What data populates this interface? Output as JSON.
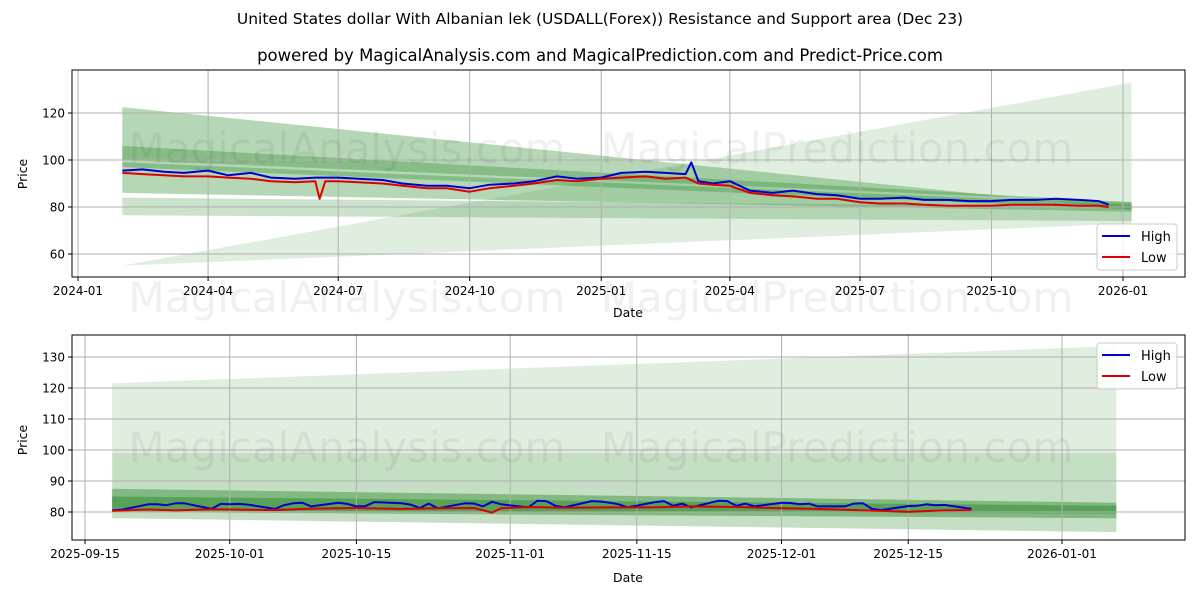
{
  "header": {
    "title": "United States dollar With Albanian lek (USDALL(Forex)) Resistance and Support area (Dec 23)",
    "subtitle": "powered by MagicalAnalysis.com and MagicalPrediction.com and Predict-Price.com"
  },
  "watermarks": [
    "MagicalAnalysis.com",
    "MagicalPrediction.com"
  ],
  "colors": {
    "high": "#0000cc",
    "low": "#dd0000",
    "band_dark": "#2e8b2e",
    "band_mid": "#4caf50",
    "band_light": "#a5d6a7",
    "grid": "#b0b0b0"
  },
  "chart_data": [
    {
      "type": "line",
      "title": "",
      "xlabel": "Date",
      "ylabel": "Price",
      "ylim": [
        50,
        138
      ],
      "grid": true,
      "legend_position": "lower right",
      "legend": [
        "High",
        "Low"
      ],
      "x_ticks": [
        "2024-01",
        "2024-04",
        "2024-07",
        "2024-10",
        "2025-01",
        "2025-04",
        "2025-07",
        "2025-10",
        "2026-01"
      ],
      "y_ticks": [
        60,
        80,
        100,
        120
      ],
      "series": [
        {
          "name": "High",
          "x": [
            "2024-02-01",
            "2024-02-15",
            "2024-03-01",
            "2024-03-15",
            "2024-04-01",
            "2024-04-15",
            "2024-05-01",
            "2024-05-15",
            "2024-06-01",
            "2024-06-15",
            "2024-07-01",
            "2024-07-15",
            "2024-08-01",
            "2024-08-15",
            "2024-09-01",
            "2024-09-15",
            "2024-10-01",
            "2024-10-15",
            "2024-11-01",
            "2024-11-15",
            "2024-12-01",
            "2024-12-15",
            "2025-01-01",
            "2025-01-15",
            "2025-02-01",
            "2025-02-15",
            "2025-03-01",
            "2025-03-05",
            "2025-03-10",
            "2025-03-20",
            "2025-04-01",
            "2025-04-15",
            "2025-05-01",
            "2025-05-15",
            "2025-06-01",
            "2025-06-15",
            "2025-07-01",
            "2025-07-15",
            "2025-08-01",
            "2025-08-15",
            "2025-09-01",
            "2025-09-15",
            "2025-10-01",
            "2025-10-15",
            "2025-11-01",
            "2025-11-15",
            "2025-12-01",
            "2025-12-15",
            "2025-12-22"
          ],
          "values": [
            95.5,
            96,
            95,
            94.5,
            95.5,
            93.5,
            94.5,
            92.5,
            92,
            92.5,
            92.5,
            92,
            91.5,
            90,
            89,
            89,
            88,
            89.5,
            90,
            91,
            93,
            92,
            92.5,
            94.5,
            95,
            94.5,
            94,
            99,
            91,
            90,
            91,
            87,
            86,
            87,
            85.5,
            85,
            83.5,
            83.5,
            84,
            83,
            83,
            82.5,
            82.5,
            83,
            83,
            83.5,
            83,
            82.5,
            81
          ]
        },
        {
          "name": "Low",
          "x": [
            "2024-02-01",
            "2024-02-15",
            "2024-03-01",
            "2024-03-15",
            "2024-04-01",
            "2024-04-15",
            "2024-05-01",
            "2024-05-15",
            "2024-06-01",
            "2024-06-15",
            "2024-06-18",
            "2024-06-22",
            "2024-07-01",
            "2024-07-15",
            "2024-08-01",
            "2024-08-15",
            "2024-09-01",
            "2024-09-15",
            "2024-10-01",
            "2024-10-15",
            "2024-11-01",
            "2024-11-15",
            "2024-12-01",
            "2024-12-15",
            "2025-01-01",
            "2025-01-15",
            "2025-02-01",
            "2025-02-15",
            "2025-03-01",
            "2025-03-10",
            "2025-03-20",
            "2025-04-01",
            "2025-04-15",
            "2025-05-01",
            "2025-05-15",
            "2025-06-01",
            "2025-06-15",
            "2025-07-01",
            "2025-07-15",
            "2025-08-01",
            "2025-08-15",
            "2025-09-01",
            "2025-09-15",
            "2025-10-01",
            "2025-10-15",
            "2025-11-01",
            "2025-11-15",
            "2025-12-01",
            "2025-12-15",
            "2025-12-22"
          ],
          "values": [
            94.5,
            94,
            93.5,
            93,
            93,
            92.5,
            92,
            91,
            90.5,
            91,
            83.5,
            91,
            91,
            90.5,
            90,
            89,
            88,
            88,
            86.5,
            88,
            89,
            90,
            91.5,
            91,
            92,
            92.5,
            93,
            92,
            92.5,
            90,
            89.5,
            89,
            86,
            85,
            84.5,
            83.5,
            83.5,
            82,
            81.5,
            81.5,
            81,
            80.5,
            80.5,
            80.5,
            81,
            81,
            81,
            80.5,
            80.5,
            80
          ]
        }
      ],
      "bands": [
        {
          "name": "outer-wide",
          "opacity": 0.15,
          "x0": "2024-02-01",
          "x1": "2026-01-07",
          "upper": [
            55,
            133
          ],
          "lower": [
            55,
            73
          ],
          "note": "light triangle from low-left"
        },
        {
          "name": "upper-resistance",
          "opacity": 0.35,
          "x0": "2024-02-01",
          "x1": "2026-01-07",
          "upper": [
            122.5,
            79
          ],
          "lower": [
            100,
            82
          ]
        },
        {
          "name": "mid-resistance",
          "opacity": 0.35,
          "x0": "2024-02-01",
          "x1": "2026-01-07",
          "upper": [
            106,
            82
          ],
          "lower": [
            97,
            79
          ]
        },
        {
          "name": "core",
          "opacity": 0.35,
          "x0": "2024-02-01",
          "x1": "2026-01-07",
          "upper": [
            99,
            81
          ],
          "lower": [
            86,
            78
          ]
        },
        {
          "name": "support",
          "opacity": 0.25,
          "x0": "2024-02-01",
          "x1": "2026-01-07",
          "upper": [
            84,
            80
          ],
          "lower": [
            76.5,
            74
          ]
        }
      ]
    },
    {
      "type": "line",
      "title": "",
      "xlabel": "Date",
      "ylabel": "Price",
      "ylim": [
        71,
        137
      ],
      "grid": true,
      "legend_position": "upper right",
      "legend": [
        "High",
        "Low"
      ],
      "x_ticks": [
        "2025-09-15",
        "2025-10-01",
        "2025-10-15",
        "2025-11-01",
        "2025-11-15",
        "2025-12-01",
        "2025-12-15",
        "2026-01-01"
      ],
      "y_ticks": [
        80,
        90,
        100,
        110,
        120,
        130
      ],
      "series": [
        {
          "name": "High",
          "x": [
            "2025-09-18",
            "2025-09-19",
            "2025-09-22",
            "2025-09-23",
            "2025-09-24",
            "2025-09-25",
            "2025-09-26",
            "2025-09-29",
            "2025-09-30",
            "2025-10-01",
            "2025-10-02",
            "2025-10-03",
            "2025-10-06",
            "2025-10-07",
            "2025-10-08",
            "2025-10-09",
            "2025-10-10",
            "2025-10-13",
            "2025-10-14",
            "2025-10-15",
            "2025-10-16",
            "2025-10-17",
            "2025-10-20",
            "2025-10-21",
            "2025-10-22",
            "2025-10-23",
            "2025-10-24",
            "2025-10-27",
            "2025-10-28",
            "2025-10-29",
            "2025-10-30",
            "2025-10-31",
            "2025-11-03",
            "2025-11-04",
            "2025-11-05",
            "2025-11-06",
            "2025-11-07",
            "2025-11-10",
            "2025-11-11",
            "2025-11-12",
            "2025-11-13",
            "2025-11-14",
            "2025-11-17",
            "2025-11-18",
            "2025-11-19",
            "2025-11-20",
            "2025-11-21",
            "2025-11-24",
            "2025-11-25",
            "2025-11-26",
            "2025-11-27",
            "2025-11-28",
            "2025-12-01",
            "2025-12-02",
            "2025-12-03",
            "2025-12-04",
            "2025-12-05",
            "2025-12-08",
            "2025-12-09",
            "2025-12-10",
            "2025-12-11",
            "2025-12-12",
            "2025-12-15",
            "2025-12-16",
            "2025-12-17",
            "2025-12-18",
            "2025-12-19",
            "2025-12-22"
          ],
          "values": [
            80.5,
            80.7,
            82.5,
            82.5,
            82.2,
            82.8,
            82.8,
            81,
            82.6,
            82.5,
            82.6,
            82.4,
            81,
            82.2,
            82.8,
            83,
            81.8,
            83,
            82.6,
            81.8,
            81.9,
            83.2,
            82.8,
            82.4,
            81.3,
            82.7,
            81.2,
            82.8,
            82.7,
            81.8,
            83.3,
            82.5,
            81.5,
            83.6,
            83.5,
            82,
            81.5,
            83.5,
            83.4,
            83,
            82.5,
            81.5,
            83.2,
            83.5,
            82,
            82.7,
            81.5,
            83.6,
            83.5,
            82,
            82.7,
            81.8,
            83,
            82.9,
            82.5,
            82.7,
            81.8,
            81.8,
            82.7,
            82.8,
            81,
            80.6,
            81.9,
            82,
            82.5,
            82.2,
            82.3,
            81
          ]
        },
        {
          "name": "Low",
          "x": [
            "2025-09-18",
            "2025-09-22",
            "2025-09-25",
            "2025-09-29",
            "2025-10-01",
            "2025-10-06",
            "2025-10-10",
            "2025-10-15",
            "2025-10-20",
            "2025-10-24",
            "2025-10-28",
            "2025-10-30",
            "2025-10-31",
            "2025-11-03",
            "2025-11-07",
            "2025-11-12",
            "2025-11-17",
            "2025-11-21",
            "2025-11-26",
            "2025-12-01",
            "2025-12-05",
            "2025-12-10",
            "2025-12-15",
            "2025-12-19",
            "2025-12-22"
          ],
          "values": [
            80.4,
            80.8,
            80.5,
            80.9,
            80.8,
            80.6,
            81.1,
            81.3,
            81,
            81.2,
            81.3,
            79.8,
            81.2,
            81.6,
            81.4,
            81.5,
            81.5,
            81.8,
            81.6,
            81.2,
            81,
            80.5,
            80.1,
            80.5,
            80.6
          ]
        }
      ],
      "bands": [
        {
          "name": "outer-wide",
          "opacity": 0.15,
          "x0": "2025-09-18",
          "x1": "2026-01-07",
          "upper": [
            121.5,
            133.5
          ],
          "lower": [
            78,
            73.5
          ]
        },
        {
          "name": "mid",
          "opacity": 0.15,
          "x0": "2025-09-18",
          "x1": "2026-01-07",
          "upper": [
            99,
            99
          ],
          "lower": [
            78,
            73.5
          ]
        },
        {
          "name": "resistance",
          "opacity": 0.45,
          "x0": "2025-09-18",
          "x1": "2026-01-07",
          "upper": [
            87.5,
            83
          ],
          "lower": [
            80,
            78
          ]
        },
        {
          "name": "core",
          "opacity": 0.5,
          "x0": "2025-09-18",
          "x1": "2026-01-07",
          "upper": [
            85,
            82
          ],
          "lower": [
            80.5,
            79.5
          ]
        }
      ]
    }
  ]
}
